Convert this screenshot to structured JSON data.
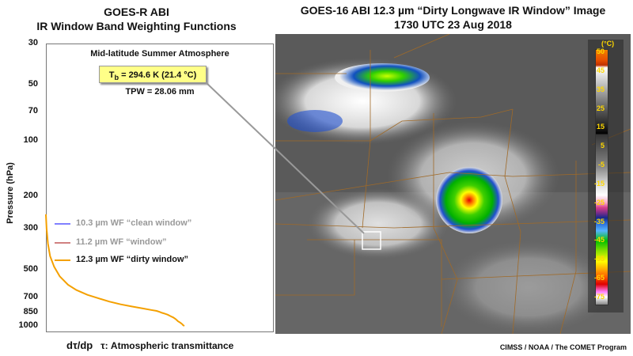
{
  "left_header": {
    "line1": "GOES-R ABI",
    "line2": "IR Window Band Weighting Functions"
  },
  "right_header": {
    "line1": "GOES-16 ABI 12.3 µm “Dirty Longwave IR Window” Image",
    "line2": "1730 UTC  23 Aug 2018"
  },
  "panel": {
    "atmosphere": "Mid-latitude Summer Atmosphere",
    "tb_prefix": "T",
    "tb_sub": "b",
    "tb_rest": " = 294.6 K (21.4 °C)",
    "tpw": "TPW = 28.06 mm"
  },
  "chart_data": {
    "type": "line",
    "ylabel": "Pressure (hPa)",
    "xlabel_symbol": "dτ/dp",
    "xlabel": "τ: Atmospheric transmittance",
    "y_scale": "log",
    "y_inverted": true,
    "ylim": [
      30,
      1000
    ],
    "yticks": [
      30,
      50,
      70,
      100,
      200,
      300,
      500,
      700,
      850,
      1000
    ],
    "yticklabels": [
      "30",
      "50",
      "70",
      "100",
      "200",
      "300",
      "500",
      "700",
      "850",
      "1000"
    ],
    "legend_placement": "lower-left",
    "series": [
      {
        "name": "10.3 µm WF “clean window”",
        "color": "#8080ff",
        "label_color": "#999999",
        "values": []
      },
      {
        "name": "11.2 µm WF “window”",
        "color": "#d08080",
        "label_color": "#999999",
        "values": []
      },
      {
        "name": "12.3 µm WF “dirty window”",
        "color": "#f4a000",
        "label_color": "#111111",
        "x": [
          0.0,
          0.005,
          0.015,
          0.03,
          0.06,
          0.1,
          0.16,
          0.22,
          0.3,
          0.38,
          0.46,
          0.54,
          0.62,
          0.7,
          0.76,
          0.8,
          0.82,
          0.84,
          0.86,
          0.88,
          0.9,
          0.92,
          0.935,
          0.945,
          0.955,
          0.97,
          0.985,
          0.99,
          1.0
        ],
        "y": [
          250,
          300,
          360,
          420,
          480,
          540,
          600,
          640,
          680,
          710,
          740,
          765,
          785,
          805,
          820,
          830,
          840,
          850,
          860,
          870,
          885,
          900,
          915,
          930,
          945,
          960,
          980,
          990,
          1000
        ]
      }
    ]
  },
  "colorbar": {
    "unit": "(°C)",
    "labels": [
      "50",
      "45",
      "35",
      "25",
      "15",
      "5",
      "-5",
      "-15",
      "-25",
      "-35",
      "-45",
      "-55",
      "-65",
      "-75"
    ]
  },
  "credit": "CIMSS / NOAA / The COMET Program"
}
